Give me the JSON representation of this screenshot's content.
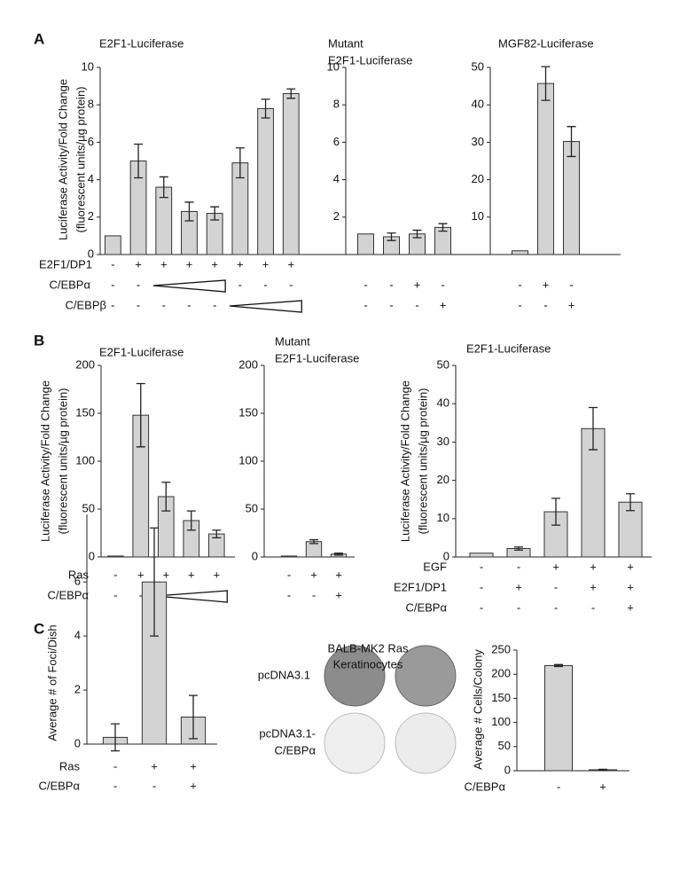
{
  "chart_data": [
    {
      "type": "bar",
      "panel": "A",
      "title": [
        "E2F1-Luciferase"
      ],
      "ylabel": [
        "Luciferase Activity/Fold Change",
        "(fluorescent units/µg protein)"
      ],
      "values": [
        1,
        5.0,
        3.6,
        2.3,
        2.2,
        4.9,
        7.8,
        8.6
      ],
      "errors": [
        null,
        0.9,
        0.55,
        0.5,
        0.35,
        0.8,
        0.5,
        0.25
      ],
      "ylim": [
        0,
        10
      ],
      "yticks": [
        0,
        2,
        4,
        6,
        8,
        10
      ],
      "color": "#d3d3d3",
      "conditions": [
        {
          "label": "E2F1/DP1",
          "signs": [
            "-",
            "+",
            "+",
            "+",
            "+",
            "+",
            "+",
            "+"
          ]
        },
        {
          "label": "C/EBPα",
          "signs": [
            "-",
            "-",
            null,
            null,
            null,
            "-",
            "-",
            "-"
          ]
        },
        {
          "label": "C/EBPβ",
          "signs": [
            "-",
            "-",
            "-",
            "-",
            "-",
            null,
            null,
            null
          ]
        }
      ]
    },
    {
      "type": "bar",
      "title": [
        "Mutant",
        "E2F1-Luciferase"
      ],
      "values": [
        1.1,
        0.95,
        1.1,
        1.45
      ],
      "errors": [
        null,
        0.2,
        0.2,
        0.2
      ],
      "ylim": [
        0,
        10
      ],
      "yticks": [
        2,
        4,
        6,
        8,
        10
      ],
      "color": "#d3d3d3",
      "conditions": [
        {
          "signs": [
            "-",
            "-",
            "+",
            "-"
          ]
        },
        {
          "signs": [
            "-",
            "-",
            "-",
            "+"
          ]
        }
      ]
    },
    {
      "type": "bar",
      "title": [
        "MGF82-Luciferase"
      ],
      "values": [
        1,
        45.7,
        30.2
      ],
      "errors": [
        null,
        4.5,
        4
      ],
      "ylim": [
        0,
        50
      ],
      "yticks": [
        10,
        20,
        30,
        40,
        50
      ],
      "color": "#d3d3d3",
      "conditions": [
        {
          "signs": [
            "-",
            "+",
            "-"
          ]
        },
        {
          "signs": [
            "-",
            "-",
            "+"
          ]
        }
      ]
    },
    {
      "type": "bar",
      "panel": "B",
      "title": [
        "E2F1-Luciferase"
      ],
      "ylabel": [
        "Luciferase Activity/Fold Change",
        "(fluorescent units/µg protein)"
      ],
      "values": [
        1,
        148,
        63,
        38,
        24
      ],
      "errors": [
        null,
        33,
        15,
        10,
        4
      ],
      "ylim": [
        0,
        200
      ],
      "yticks": [
        0,
        50,
        100,
        150,
        200
      ],
      "color": "#d3d3d3",
      "conditions": [
        {
          "label": "Ras",
          "signs": [
            "-",
            "+",
            "+",
            "+",
            "+"
          ]
        },
        {
          "label": "C/EBPα",
          "signs": [
            "-",
            "-",
            null,
            null,
            null
          ]
        }
      ]
    },
    {
      "type": "bar",
      "title": [
        "Mutant",
        "E2F1-Luciferase"
      ],
      "values": [
        1,
        16,
        3
      ],
      "errors": [
        null,
        2,
        1
      ],
      "ylim": [
        0,
        200
      ],
      "yticks": [
        0,
        50,
        100,
        150,
        200
      ],
      "color": "#d3d3d3",
      "conditions": [
        {
          "signs": [
            "-",
            "+",
            "+"
          ]
        },
        {
          "signs": [
            "-",
            "-",
            "+"
          ]
        }
      ]
    },
    {
      "type": "bar",
      "title": [
        "E2F1-Luciferase"
      ],
      "ylabel": [
        "Luciferase Activity/Fold Change",
        "(fluorescent units/µg protein)"
      ],
      "values": [
        1,
        2.2,
        11.8,
        33.5,
        14.3
      ],
      "errors": [
        null,
        0.4,
        3.5,
        5.5,
        2.2
      ],
      "ylim": [
        0,
        50
      ],
      "yticks": [
        0,
        10,
        20,
        30,
        40,
        50
      ],
      "color": "#d3d3d3",
      "conditions": [
        {
          "label": "EGF",
          "signs": [
            "-",
            "-",
            "+",
            "+",
            "+"
          ]
        },
        {
          "label": "E2F1/DP1",
          "signs": [
            "-",
            "+",
            "-",
            "+",
            "+"
          ]
        },
        {
          "label": "C/EBPα",
          "signs": [
            "-",
            "-",
            "-",
            "-",
            "+"
          ]
        }
      ]
    },
    {
      "type": "bar",
      "panel": "C",
      "ylabel": [
        "Average # of Foci/Dish"
      ],
      "values": [
        0.25,
        6,
        1
      ],
      "errors": [
        0.5,
        2,
        0.8
      ],
      "ylim": [
        0,
        8.5
      ],
      "yticks": [
        0,
        2,
        4,
        6
      ],
      "color": "#d3d3d3",
      "conditions": [
        {
          "label": "Ras",
          "signs": [
            "-",
            "+",
            "+"
          ]
        },
        {
          "label": "C/EBPα",
          "signs": [
            "-",
            "-",
            "+"
          ]
        }
      ]
    },
    {
      "type": "bar",
      "ylabel": [
        "Average # Cells/Colony"
      ],
      "values": [
        218,
        2
      ],
      "errors": [
        2,
        1
      ],
      "ylim": [
        0,
        250
      ],
      "yticks": [
        0,
        50,
        100,
        150,
        200,
        250
      ],
      "color": "#d3d3d3",
      "conditions": [
        {
          "label": "C/EBPα",
          "signs": [
            "-",
            "+"
          ]
        }
      ]
    }
  ],
  "image_panel": {
    "title": [
      "BALB-MK2 Ras",
      "Keratinocytes"
    ],
    "rows": [
      [
        "pcDNA3.1"
      ],
      [
        "pcDNA3.1-",
        "C/EBPα"
      ]
    ]
  }
}
